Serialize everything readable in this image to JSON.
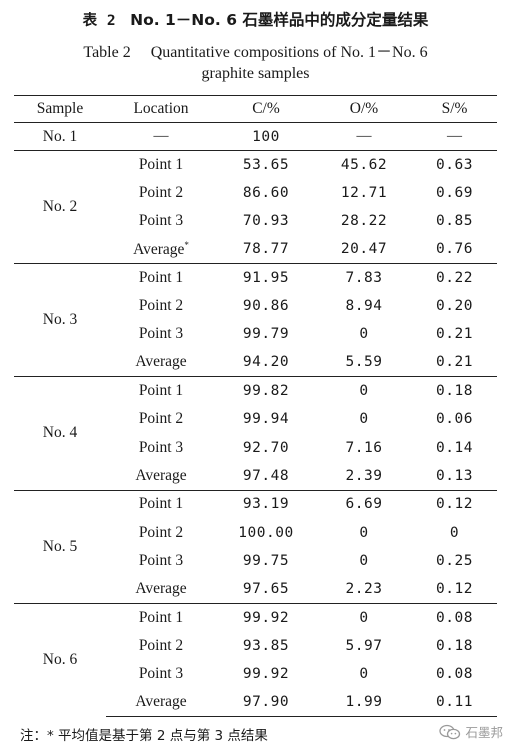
{
  "title_cn": {
    "label": "表 2",
    "text": "No. 1－No. 6 石墨样品中的成分定量结果"
  },
  "title_en": {
    "label": "Table 2",
    "line1": "Quantitative compositions of No. 1－No. 6",
    "line2": "graphite samples"
  },
  "headers": [
    "Sample",
    "Location",
    "C/%",
    "O/%",
    "S/%"
  ],
  "no1": {
    "sample": "No. 1",
    "location": "—",
    "c": "100",
    "o": "—",
    "s": "—"
  },
  "groups": [
    {
      "sample": "No. 2",
      "rows": [
        {
          "location": "Point 1",
          "c": "53.65",
          "o": "45.62",
          "s": "0.63"
        },
        {
          "location": "Point 2",
          "c": "86.60",
          "o": "12.71",
          "s": "0.69"
        },
        {
          "location": "Point 3",
          "c": "70.93",
          "o": "28.22",
          "s": "0.85"
        },
        {
          "location": "Average",
          "c": "78.77",
          "o": "20.47",
          "s": "0.76"
        }
      ]
    },
    {
      "sample": "No. 3",
      "rows": [
        {
          "location": "Point 1",
          "c": "91.95",
          "o": "7.83",
          "s": "0.22"
        },
        {
          "location": "Point 2",
          "c": "90.86",
          "o": "8.94",
          "s": "0.20"
        },
        {
          "location": "Point 3",
          "c": "99.79",
          "o": "0",
          "s": "0.21"
        },
        {
          "location": "Average",
          "c": "94.20",
          "o": "5.59",
          "s": "0.21"
        }
      ]
    },
    {
      "sample": "No. 4",
      "rows": [
        {
          "location": "Point 1",
          "c": "99.82",
          "o": "0",
          "s": "0.18"
        },
        {
          "location": "Point 2",
          "c": "99.94",
          "o": "0",
          "s": "0.06"
        },
        {
          "location": "Point 3",
          "c": "92.70",
          "o": "7.16",
          "s": "0.14"
        },
        {
          "location": "Average",
          "c": "97.48",
          "o": "2.39",
          "s": "0.13"
        }
      ]
    },
    {
      "sample": "No. 5",
      "rows": [
        {
          "location": "Point 1",
          "c": "93.19",
          "o": "6.69",
          "s": "0.12"
        },
        {
          "location": "Point 2",
          "c": "100.00",
          "o": "0",
          "s": "0"
        },
        {
          "location": "Point 3",
          "c": "99.75",
          "o": "0",
          "s": "0.25"
        },
        {
          "location": "Average",
          "c": "97.65",
          "o": "2.23",
          "s": "0.12"
        }
      ]
    },
    {
      "sample": "No. 6",
      "rows": [
        {
          "location": "Point 1",
          "c": "99.92",
          "o": "0",
          "s": "0.08"
        },
        {
          "location": "Point 2",
          "c": "93.85",
          "o": "5.97",
          "s": "0.18"
        },
        {
          "location": "Point 3",
          "c": "99.92",
          "o": "0",
          "s": "0.08"
        },
        {
          "location": "Average",
          "c": "97.90",
          "o": "1.99",
          "s": "0.11"
        }
      ]
    }
  ],
  "average_mark": "*",
  "footnote": "注：* 平均值是基于第 2 点与第 3 点结果",
  "watermark": {
    "text": "石墨邦",
    "icon": "wechat-icon"
  }
}
